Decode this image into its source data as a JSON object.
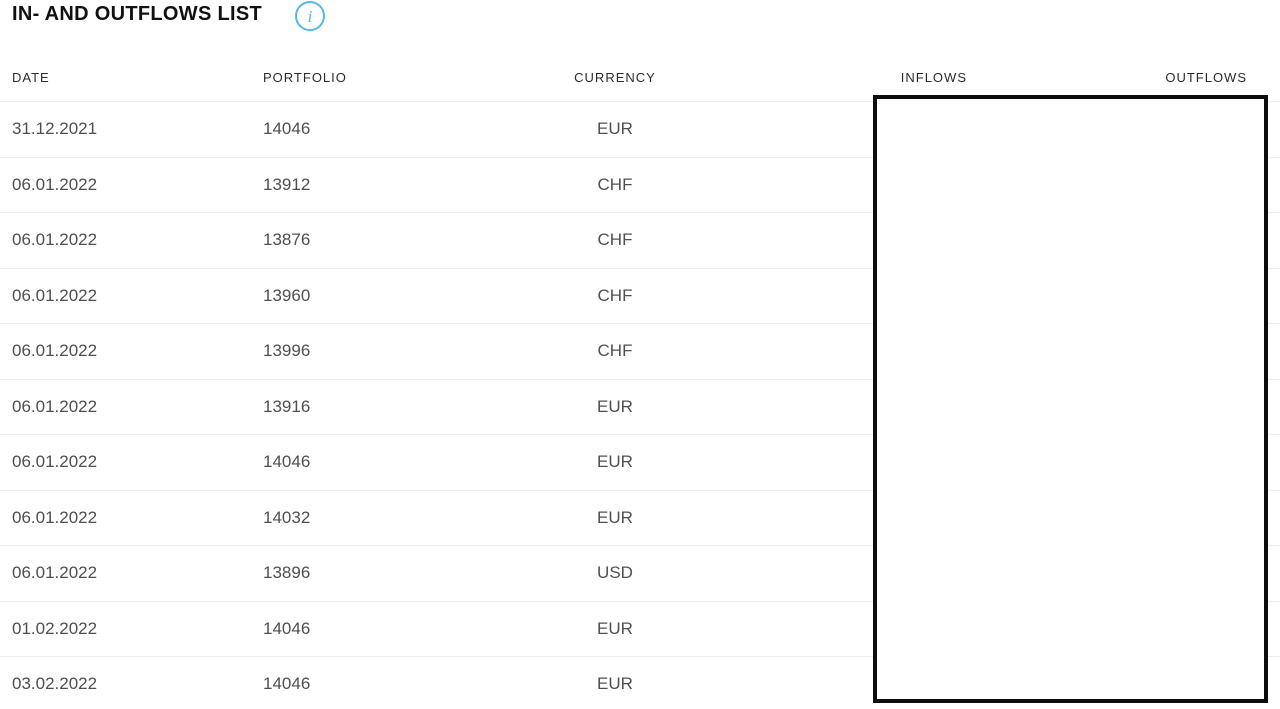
{
  "title": "IN- AND OUTFLOWS LIST",
  "info_icon": {
    "name": "info-icon",
    "glyph": "i",
    "color": "#56b7e8"
  },
  "colors": {
    "title_text": "#111111",
    "header_text": "#2b2b2b",
    "body_text": "#4f4f4f",
    "row_separator": "#ededed",
    "redaction_border": "#0d0d0d",
    "background": "#ffffff"
  },
  "table": {
    "columns": [
      {
        "key": "date",
        "label": "DATE",
        "align": "left"
      },
      {
        "key": "portfolio",
        "label": "PORTFOLIO",
        "align": "left"
      },
      {
        "key": "currency",
        "label": "CURRENCY",
        "align": "center"
      },
      {
        "key": "inflows",
        "label": "INFLOWS",
        "align": "right"
      },
      {
        "key": "outflows",
        "label": "OUTFLOWS",
        "align": "right"
      }
    ],
    "rows": [
      {
        "date": "31.12.2021",
        "portfolio": "14046",
        "currency": "EUR",
        "inflows": "",
        "outflows": ""
      },
      {
        "date": "06.01.2022",
        "portfolio": "13912",
        "currency": "CHF",
        "inflows": "",
        "outflows": ""
      },
      {
        "date": "06.01.2022",
        "portfolio": "13876",
        "currency": "CHF",
        "inflows": "",
        "outflows": ""
      },
      {
        "date": "06.01.2022",
        "portfolio": "13960",
        "currency": "CHF",
        "inflows": "",
        "outflows": ""
      },
      {
        "date": "06.01.2022",
        "portfolio": "13996",
        "currency": "CHF",
        "inflows": "",
        "outflows": ""
      },
      {
        "date": "06.01.2022",
        "portfolio": "13916",
        "currency": "EUR",
        "inflows": "",
        "outflows": ""
      },
      {
        "date": "06.01.2022",
        "portfolio": "14046",
        "currency": "EUR",
        "inflows": "",
        "outflows": ""
      },
      {
        "date": "06.01.2022",
        "portfolio": "14032",
        "currency": "EUR",
        "inflows": "",
        "outflows": ""
      },
      {
        "date": "06.01.2022",
        "portfolio": "13896",
        "currency": "USD",
        "inflows": "",
        "outflows": ""
      },
      {
        "date": "01.02.2022",
        "portfolio": "14046",
        "currency": "EUR",
        "inflows": "",
        "outflows": ""
      },
      {
        "date": "03.02.2022",
        "portfolio": "14046",
        "currency": "EUR",
        "inflows": "",
        "outflows": ""
      }
    ],
    "redaction_box": {
      "covers": "inflows-outflows-values"
    }
  }
}
